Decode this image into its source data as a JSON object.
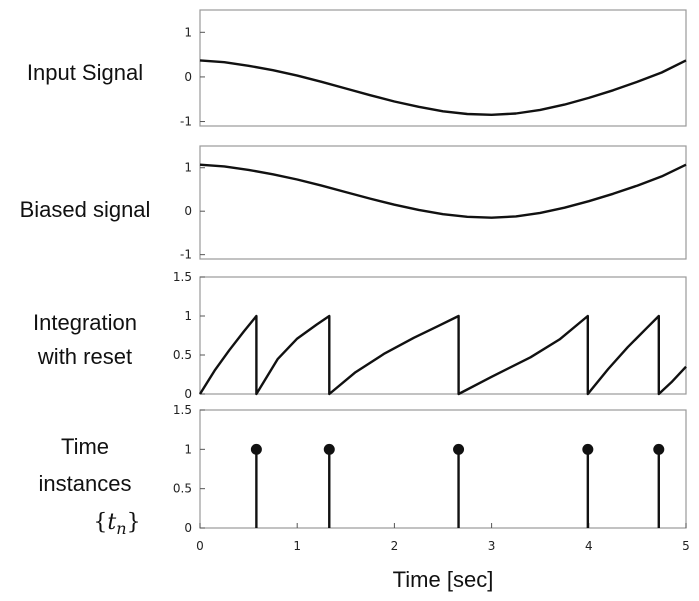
{
  "xlabel": "Time [sec]",
  "math_label": {
    "open": "{",
    "t": "t",
    "sub": "n",
    "close": "}"
  },
  "chart_data": [
    {
      "type": "line",
      "ylabel": [
        "Input Signal"
      ],
      "ylim": [
        -1.1,
        1.5
      ],
      "yticks": [
        -1,
        0,
        1
      ],
      "xlim": [
        0,
        5
      ],
      "xticks": [],
      "xticklabels": [],
      "x": [
        0,
        0.25,
        0.5,
        0.75,
        1,
        1.25,
        1.5,
        1.75,
        2,
        2.25,
        2.5,
        2.75,
        3,
        3.25,
        3.5,
        3.75,
        4,
        4.25,
        4.5,
        4.75,
        5
      ],
      "series": [
        {
          "values": [
            0.37,
            0.33,
            0.25,
            0.15,
            0.03,
            -0.11,
            -0.26,
            -0.41,
            -0.55,
            -0.67,
            -0.77,
            -0.83,
            -0.85,
            -0.82,
            -0.74,
            -0.62,
            -0.47,
            -0.3,
            -0.11,
            0.1,
            0.37
          ]
        }
      ]
    },
    {
      "type": "line",
      "ylabel": [
        "Biased signal"
      ],
      "ylim": [
        -1.1,
        1.5
      ],
      "yticks": [
        -1,
        0,
        1
      ],
      "xlim": [
        0,
        5
      ],
      "xticks": [],
      "xticklabels": [],
      "x": [
        0,
        0.25,
        0.5,
        0.75,
        1,
        1.25,
        1.5,
        1.75,
        2,
        2.25,
        2.5,
        2.75,
        3,
        3.25,
        3.5,
        3.75,
        4,
        4.25,
        4.5,
        4.75,
        5
      ],
      "series": [
        {
          "values": [
            1.07,
            1.03,
            0.95,
            0.85,
            0.73,
            0.59,
            0.44,
            0.29,
            0.15,
            0.03,
            -0.07,
            -0.13,
            -0.15,
            -0.12,
            -0.04,
            0.08,
            0.23,
            0.4,
            0.59,
            0.8,
            1.07
          ]
        }
      ]
    },
    {
      "type": "line",
      "ylabel": [
        "Integration",
        "with reset"
      ],
      "ylim": [
        0,
        1.5
      ],
      "yticks": [
        0,
        0.5,
        1,
        1.5
      ],
      "xlim": [
        0,
        5
      ],
      "xticks": [],
      "xticklabels": [],
      "x": [
        0,
        0.15,
        0.3,
        0.45,
        0.58,
        0.58,
        0.8,
        1.0,
        1.2,
        1.33,
        1.33,
        1.6,
        1.9,
        2.2,
        2.45,
        2.66,
        2.66,
        3.0,
        3.4,
        3.7,
        3.99,
        3.99,
        4.2,
        4.4,
        4.6,
        4.72,
        4.72,
        4.85,
        5.0
      ],
      "series": [
        {
          "values": [
            0,
            0.3,
            0.56,
            0.8,
            1.0,
            0,
            0.45,
            0.71,
            0.89,
            1.0,
            0,
            0.28,
            0.52,
            0.72,
            0.87,
            1.0,
            0,
            0.22,
            0.47,
            0.7,
            1.0,
            0,
            0.32,
            0.6,
            0.85,
            1.0,
            0,
            0.15,
            0.35
          ]
        }
      ]
    },
    {
      "type": "stem",
      "ylabel": [
        "Time",
        "instances"
      ],
      "ylim": [
        0,
        1.5
      ],
      "yticks": [
        0,
        0.5,
        1,
        1.5
      ],
      "xlim": [
        0,
        5
      ],
      "xticks": [
        0,
        1,
        2,
        3,
        4,
        5
      ],
      "xticklabels": [
        "0",
        "1",
        "2",
        "3",
        "4",
        "5"
      ],
      "x": [
        0.58,
        1.33,
        2.66,
        3.99,
        4.72
      ],
      "series": [
        {
          "values": [
            1,
            1,
            1,
            1,
            1
          ]
        }
      ]
    }
  ]
}
